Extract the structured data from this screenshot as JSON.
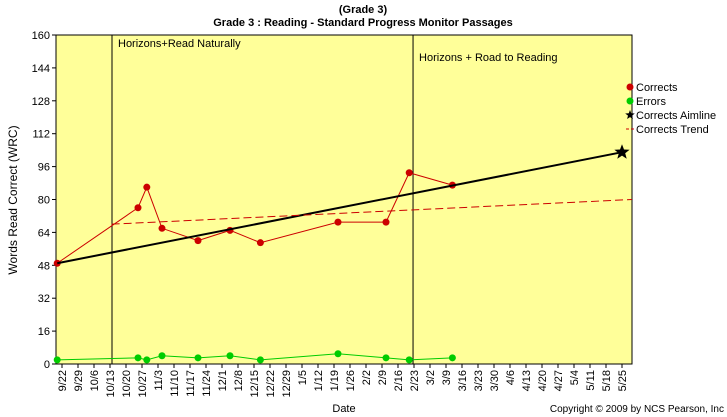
{
  "chart_data": {
    "type": "line",
    "supertitle": "(Grade 3)",
    "title": "Grade 3 : Reading - Standard Progress Monitor Passages",
    "y_label": "Words Read Correct (WRC)",
    "x_label": "Date",
    "copyright": "Copyright © 2009 by NCS Pearson, Inc",
    "background": "#ffff99",
    "xlim": [
      -0.375,
      35.625
    ],
    "xticks": [
      {
        "value": 0,
        "label": "9/22"
      },
      {
        "value": 1,
        "label": "9/29"
      },
      {
        "value": 2,
        "label": "10/6"
      },
      {
        "value": 3,
        "label": "10/13"
      },
      {
        "value": 4,
        "label": "10/20"
      },
      {
        "value": 5,
        "label": "10/27"
      },
      {
        "value": 6,
        "label": "11/3"
      },
      {
        "value": 7,
        "label": "11/10"
      },
      {
        "value": 8,
        "label": "11/17"
      },
      {
        "value": 9,
        "label": "11/24"
      },
      {
        "value": 10,
        "label": "12/1"
      },
      {
        "value": 11,
        "label": "12/8"
      },
      {
        "value": 12,
        "label": "12/15"
      },
      {
        "value": 13,
        "label": "12/22"
      },
      {
        "value": 14,
        "label": "12/29"
      },
      {
        "value": 15,
        "label": "1/5"
      },
      {
        "value": 16,
        "label": "1/12"
      },
      {
        "value": 17,
        "label": "1/19"
      },
      {
        "value": 18,
        "label": "1/26"
      },
      {
        "value": 19,
        "label": "2/2"
      },
      {
        "value": 20,
        "label": "2/9"
      },
      {
        "value": 21,
        "label": "2/16"
      },
      {
        "value": 22,
        "label": "2/23"
      },
      {
        "value": 23,
        "label": "3/2"
      },
      {
        "value": 24,
        "label": "3/9"
      },
      {
        "value": 25,
        "label": "3/16"
      },
      {
        "value": 26,
        "label": "3/23"
      },
      {
        "value": 27,
        "label": "3/30"
      },
      {
        "value": 28,
        "label": "4/6"
      },
      {
        "value": 29,
        "label": "4/13"
      },
      {
        "value": 30,
        "label": "4/20"
      },
      {
        "value": 31,
        "label": "4/27"
      },
      {
        "value": 32,
        "label": "5/4"
      },
      {
        "value": 33,
        "label": "5/11"
      },
      {
        "value": 34,
        "label": "5/18"
      },
      {
        "value": 35,
        "label": "5/25"
      }
    ],
    "ylim": [
      0,
      160
    ],
    "yticks": [
      0,
      16,
      32,
      48,
      64,
      80,
      96,
      112,
      128,
      144,
      160
    ],
    "annotations": [
      {
        "text": "Horizons+Read Naturally",
        "x": 3.125
      },
      {
        "text": "Horizons + Road to Reading",
        "x": 21.94
      }
    ],
    "series": [
      {
        "name": "Corrects",
        "color": "#cc0000",
        "marker": "circle",
        "dashed": false,
        "x": [
          -0.3,
          4.75,
          5.3,
          6.25,
          8.5,
          10.5,
          12.4,
          17.25,
          20.25,
          21.7,
          24.4
        ],
        "values": [
          49,
          76,
          86,
          66,
          60,
          65,
          59,
          69,
          69,
          93,
          87
        ]
      },
      {
        "name": "Errors",
        "color": "#00cc00",
        "marker": "circle",
        "dashed": false,
        "x": [
          -0.3,
          4.75,
          5.3,
          6.25,
          8.5,
          10.5,
          12.4,
          17.25,
          20.25,
          21.7,
          24.4
        ],
        "values": [
          2,
          3,
          2,
          4,
          3,
          4,
          2,
          5,
          3,
          2,
          3
        ]
      },
      {
        "name": "Corrects Aimline",
        "color": "#000000",
        "marker": "star-end",
        "dashed": false,
        "x": [
          -0.3,
          35
        ],
        "values": [
          49,
          103
        ]
      },
      {
        "name": "Corrects Trend",
        "color": "#cc0000",
        "marker": "none",
        "dashed": true,
        "x": [
          3.1,
          35.625
        ],
        "values": [
          68,
          80
        ]
      }
    ]
  }
}
